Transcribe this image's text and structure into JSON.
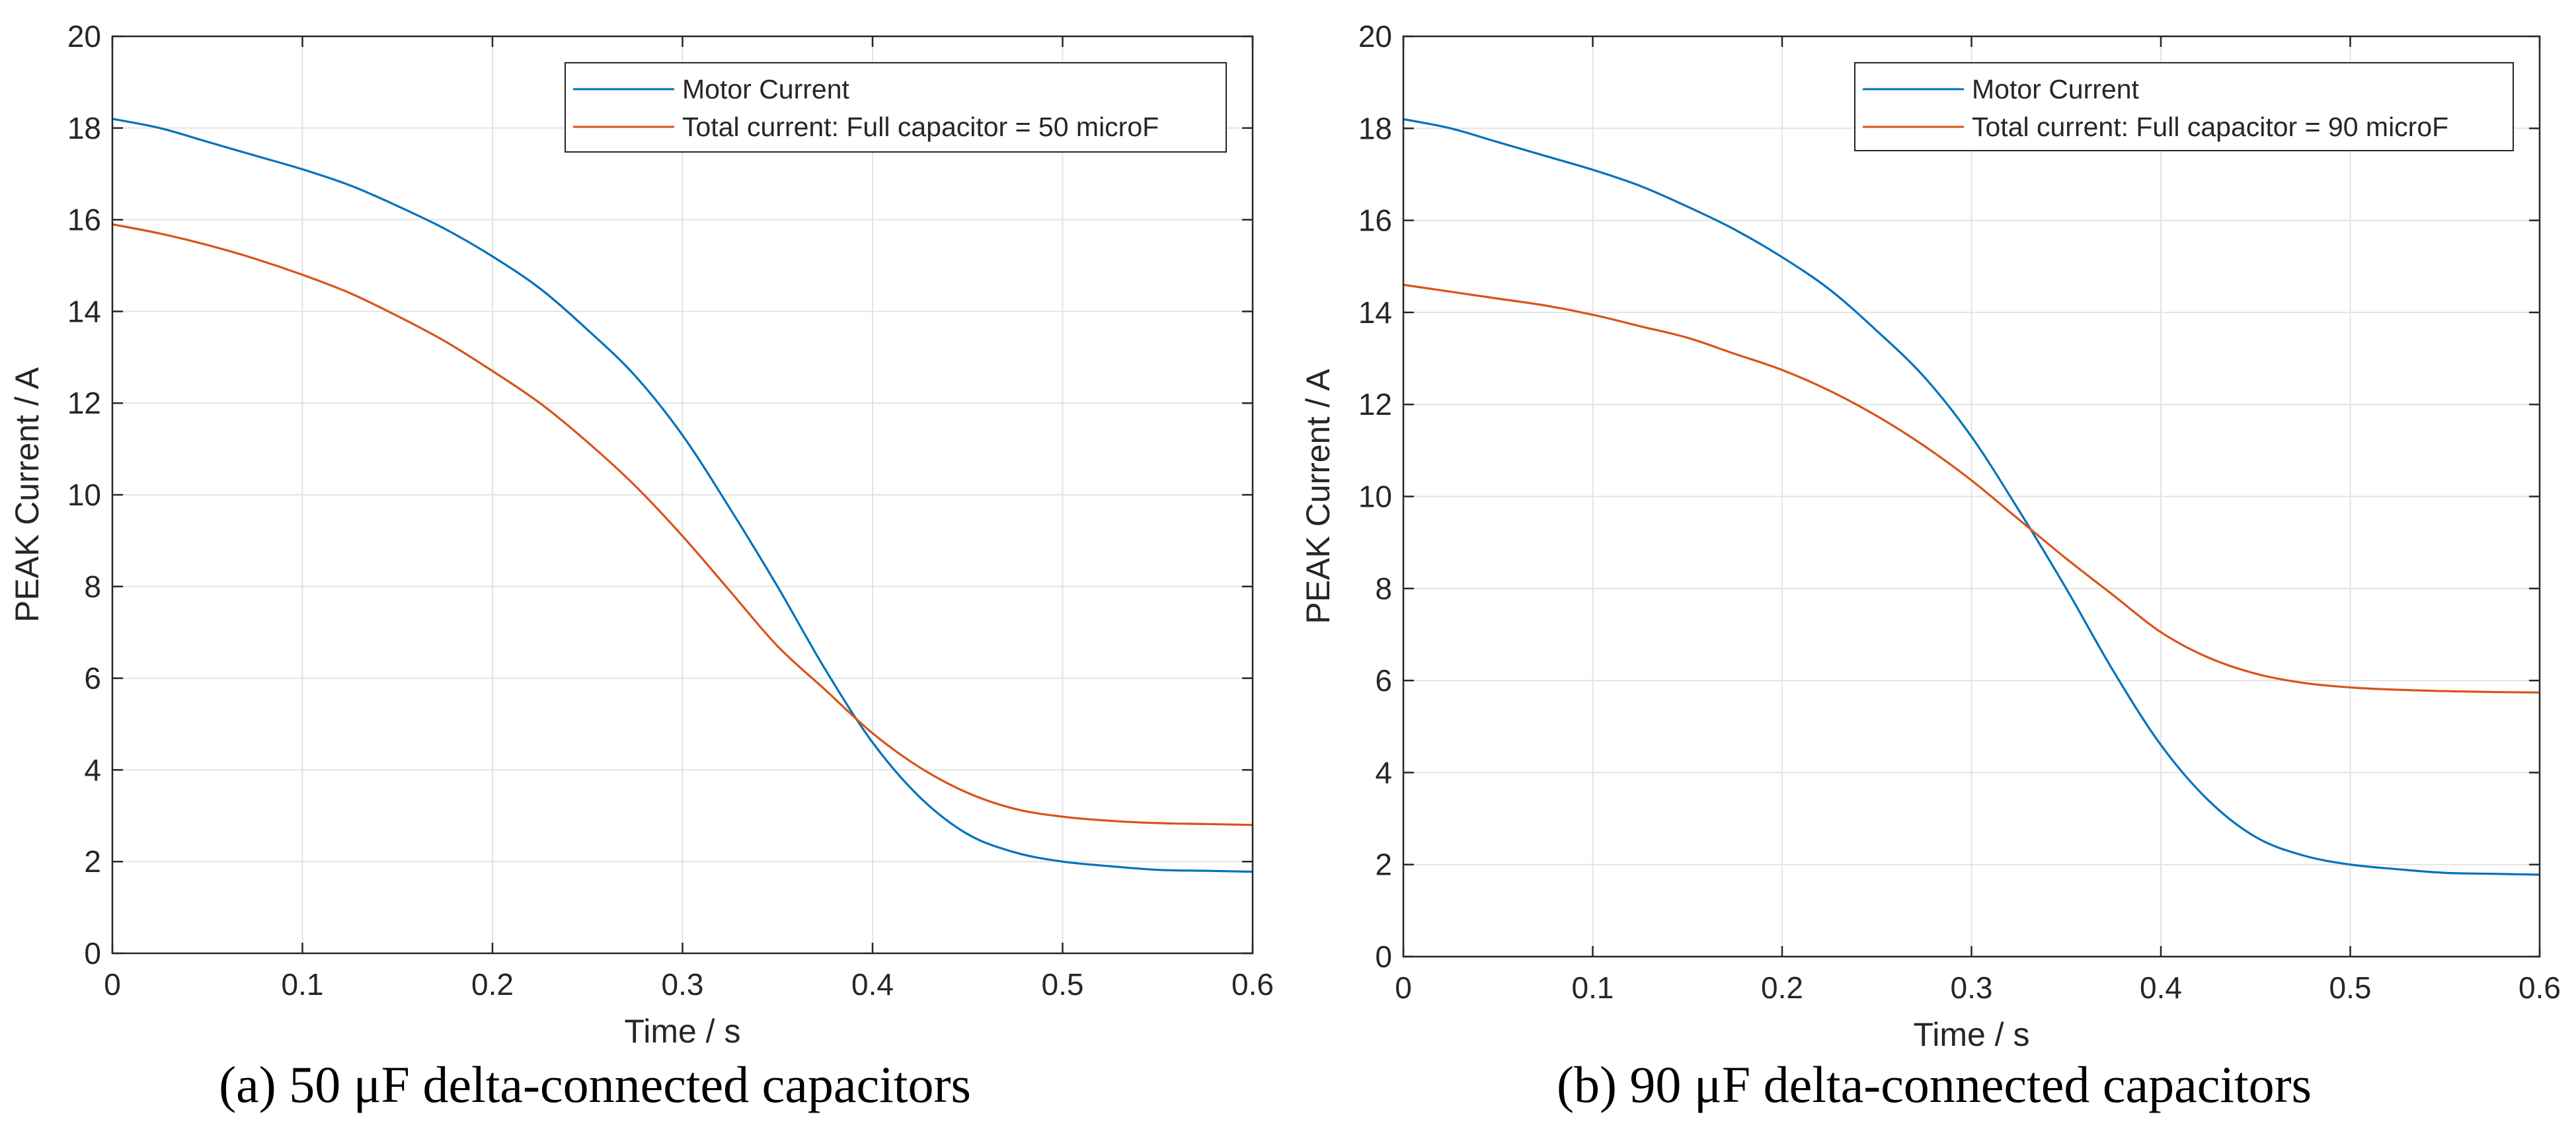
{
  "figure": {
    "panels": [
      {
        "caption": "(a) 50 μF delta-connected capacitors",
        "legend": {
          "entries": [
            "Motor Current",
            "Total current: Full capacitor =  50 microF"
          ]
        }
      },
      {
        "caption": "(b) 90 μF delta-connected capacitors",
        "legend": {
          "entries": [
            "Motor Current",
            "Total current: Full capacitor =  90 microF"
          ]
        }
      }
    ]
  },
  "colors": {
    "motor": "#0072BD",
    "total": "#D95319",
    "grid": "#e3e3e3",
    "axis": "#262626"
  },
  "chart_data": [
    {
      "type": "line",
      "title": "",
      "xlabel": "Time / s",
      "ylabel": "PEAK Current / A",
      "xlim": [
        0,
        0.6
      ],
      "ylim": [
        0,
        20
      ],
      "xticks": [
        0,
        0.1,
        0.2,
        0.3,
        0.4,
        0.5,
        0.6
      ],
      "yticks": [
        0,
        2,
        4,
        6,
        8,
        10,
        12,
        14,
        16,
        18,
        20
      ],
      "xtick_labels": [
        "0",
        "0.1",
        "0.2",
        "0.3",
        "0.4",
        "0.5",
        "0.6"
      ],
      "ytick_labels": [
        "0",
        "2",
        "4",
        "6",
        "8",
        "10",
        "12",
        "14",
        "16",
        "18",
        "20"
      ],
      "grid": true,
      "legend_position": "top-right",
      "series": [
        {
          "name": "Motor Current",
          "color": "#0072BD",
          "x": [
            0,
            0.025,
            0.05,
            0.075,
            0.1,
            0.125,
            0.15,
            0.175,
            0.2,
            0.225,
            0.25,
            0.275,
            0.3,
            0.325,
            0.35,
            0.375,
            0.4,
            0.425,
            0.45,
            0.475,
            0.5,
            0.525,
            0.55,
            0.575,
            0.6
          ],
          "values": [
            18.2,
            18.0,
            17.7,
            17.4,
            17.1,
            16.75,
            16.3,
            15.8,
            15.2,
            14.5,
            13.6,
            12.6,
            11.3,
            9.7,
            8.0,
            6.2,
            4.6,
            3.4,
            2.6,
            2.2,
            2.0,
            1.9,
            1.82,
            1.8,
            1.78
          ]
        },
        {
          "name": "Total current: Full capacitor =  50 microF",
          "color": "#D95319",
          "x": [
            0,
            0.025,
            0.05,
            0.075,
            0.1,
            0.125,
            0.15,
            0.175,
            0.2,
            0.225,
            0.25,
            0.275,
            0.3,
            0.325,
            0.35,
            0.375,
            0.4,
            0.425,
            0.45,
            0.475,
            0.5,
            0.525,
            0.55,
            0.575,
            0.6
          ],
          "values": [
            15.9,
            15.7,
            15.45,
            15.15,
            14.8,
            14.4,
            13.9,
            13.35,
            12.7,
            12.0,
            11.15,
            10.2,
            9.1,
            7.9,
            6.7,
            5.75,
            4.8,
            4.05,
            3.5,
            3.15,
            2.98,
            2.89,
            2.84,
            2.82,
            2.8
          ]
        }
      ]
    },
    {
      "type": "line",
      "title": "",
      "xlabel": "Time / s",
      "ylabel": "PEAK Current / A",
      "xlim": [
        0,
        0.6
      ],
      "ylim": [
        0,
        20
      ],
      "xticks": [
        0,
        0.1,
        0.2,
        0.3,
        0.4,
        0.5,
        0.6
      ],
      "yticks": [
        0,
        2,
        4,
        6,
        8,
        10,
        12,
        14,
        16,
        18,
        20
      ],
      "xtick_labels": [
        "0",
        "0.1",
        "0.2",
        "0.3",
        "0.4",
        "0.5",
        "0.6"
      ],
      "ytick_labels": [
        "0",
        "2",
        "4",
        "6",
        "8",
        "10",
        "12",
        "14",
        "16",
        "18",
        "20"
      ],
      "grid": true,
      "legend_position": "top-right",
      "series": [
        {
          "name": "Motor Current",
          "color": "#0072BD",
          "x": [
            0,
            0.025,
            0.05,
            0.075,
            0.1,
            0.125,
            0.15,
            0.175,
            0.2,
            0.225,
            0.25,
            0.275,
            0.3,
            0.325,
            0.35,
            0.375,
            0.4,
            0.425,
            0.45,
            0.475,
            0.5,
            0.525,
            0.55,
            0.575,
            0.6
          ],
          "values": [
            18.2,
            18.0,
            17.7,
            17.4,
            17.1,
            16.75,
            16.3,
            15.8,
            15.2,
            14.5,
            13.6,
            12.6,
            11.3,
            9.7,
            8.0,
            6.2,
            4.6,
            3.4,
            2.6,
            2.2,
            2.0,
            1.9,
            1.82,
            1.8,
            1.78
          ]
        },
        {
          "name": "Total current: Full capacitor =  90 microF",
          "color": "#D95319",
          "x": [
            0,
            0.025,
            0.05,
            0.075,
            0.1,
            0.125,
            0.15,
            0.175,
            0.2,
            0.225,
            0.25,
            0.275,
            0.3,
            0.325,
            0.35,
            0.375,
            0.4,
            0.425,
            0.45,
            0.475,
            0.5,
            0.525,
            0.55,
            0.575,
            0.6
          ],
          "values": [
            14.6,
            14.45,
            14.3,
            14.15,
            13.95,
            13.7,
            13.45,
            13.1,
            12.75,
            12.3,
            11.75,
            11.1,
            10.35,
            9.5,
            8.65,
            7.85,
            7.05,
            6.5,
            6.15,
            5.95,
            5.85,
            5.8,
            5.77,
            5.75,
            5.74
          ]
        }
      ]
    }
  ]
}
